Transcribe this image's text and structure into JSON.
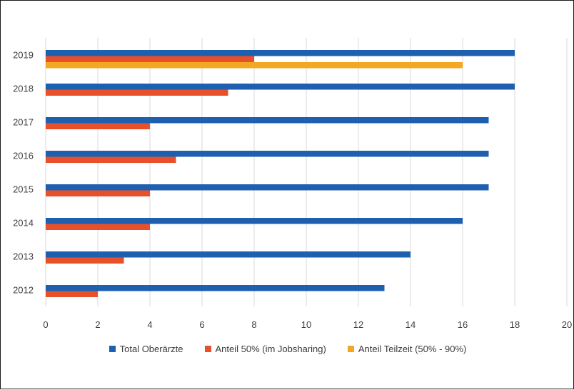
{
  "chart_data": {
    "type": "bar",
    "orientation": "horizontal",
    "title": "",
    "xlabel": "",
    "ylabel": "",
    "categories": [
      "2019",
      "2018",
      "2017",
      "2016",
      "2015",
      "2014",
      "2013",
      "2012"
    ],
    "xlim": [
      0,
      20
    ],
    "xticks": [
      "0",
      "2",
      "4",
      "6",
      "8",
      "10",
      "12",
      "14",
      "16",
      "18",
      "20"
    ],
    "grid": true,
    "legend_position": "bottom",
    "series": [
      {
        "name": "Total Oberärzte",
        "color": "#1f5fb0",
        "values": [
          18,
          18,
          17,
          17,
          17,
          16,
          14,
          13
        ]
      },
      {
        "name": "Anteil 50% (im Jobsharing)",
        "color": "#e8502a",
        "values": [
          8,
          7,
          4,
          5,
          4,
          4,
          3,
          2
        ]
      },
      {
        "name": "Anteil Teilzeit (50% - 90%)",
        "color": "#f5a623",
        "values": [
          16,
          null,
          null,
          null,
          null,
          null,
          null,
          null
        ]
      }
    ]
  }
}
